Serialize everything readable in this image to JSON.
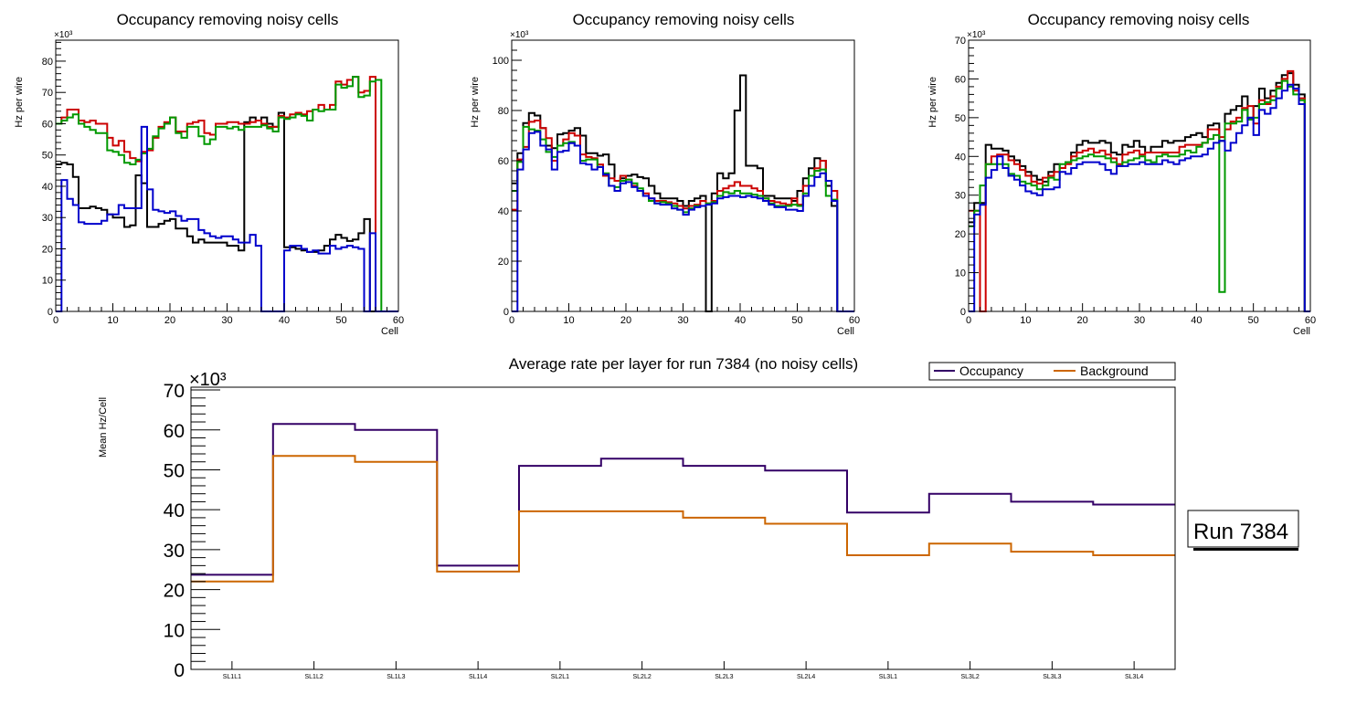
{
  "chart_data": [
    {
      "type": "line",
      "style": "histogram-step",
      "title": "Occupancy removing noisy cells",
      "xlabel": "Cell",
      "ylabel": "Hz per wire",
      "y_multiplier": "×10³",
      "xlim": [
        0,
        60
      ],
      "ylim": [
        0,
        86.7
      ],
      "xticks": [
        0,
        10,
        20,
        30,
        40,
        50,
        60
      ],
      "yticks": [
        0,
        10,
        20,
        30,
        40,
        50,
        60,
        70,
        80
      ],
      "grid": false,
      "series": [
        {
          "name": "layer-black",
          "color": "#000000",
          "values": [
            47,
            47.5,
            47,
            43,
            33,
            33,
            33.5,
            33,
            32.5,
            31,
            30,
            30,
            27,
            27.5,
            43.5,
            41,
            27,
            27,
            28,
            29,
            29.5,
            26.5,
            26.5,
            24,
            22,
            23,
            22,
            22,
            22,
            22,
            21,
            21,
            19.5,
            60.5,
            62,
            61,
            62,
            60,
            59,
            63.5,
            20.5,
            20.5,
            20,
            19.5,
            19,
            19,
            19.5,
            21,
            23,
            24.5,
            23.5,
            22.5,
            23,
            25,
            29.5,
            0,
            0,
            0,
            0,
            0
          ]
        },
        {
          "name": "layer-red",
          "color": "#cc0000",
          "values": [
            60,
            62,
            64.5,
            64.5,
            61,
            60.5,
            61,
            60,
            60,
            55.5,
            53,
            54.5,
            51,
            49,
            48,
            51,
            51.5,
            55.5,
            59,
            60.5,
            62,
            57.5,
            57.5,
            60,
            60.5,
            61,
            57,
            56.5,
            60,
            60,
            60.5,
            60.5,
            60,
            60,
            60.5,
            61,
            60,
            59,
            59,
            62.5,
            62,
            63,
            63.5,
            63,
            64,
            64.5,
            66,
            64.5,
            66,
            73.5,
            72.5,
            74,
            75,
            70,
            70.5,
            75,
            0,
            0,
            0,
            0
          ]
        },
        {
          "name": "layer-green",
          "color": "#009900",
          "values": [
            60,
            61,
            62,
            63,
            60,
            59,
            58,
            57,
            57,
            51.5,
            51,
            50,
            47.5,
            47,
            48.5,
            50.5,
            52,
            56,
            58.5,
            60,
            62,
            57,
            55.5,
            59,
            59,
            56,
            53.5,
            55,
            59,
            59,
            58.5,
            59,
            58,
            59,
            59,
            59,
            59.5,
            58.5,
            57.5,
            62,
            61.5,
            62,
            63,
            62.5,
            61,
            64.5,
            64,
            64.5,
            64.5,
            72.5,
            71.5,
            72,
            75,
            68.5,
            69,
            73.5,
            74,
            0,
            0,
            0
          ]
        },
        {
          "name": "layer-blue",
          "color": "#0000cc",
          "values": [
            0,
            42,
            36,
            34,
            28.5,
            28,
            28,
            28,
            29,
            31,
            31,
            34,
            33,
            33,
            33,
            59,
            39,
            32.5,
            32,
            31.5,
            32,
            30.5,
            29,
            29.5,
            29.5,
            26,
            25,
            24,
            23.5,
            24,
            24,
            23,
            22,
            22,
            24.5,
            21,
            0,
            0,
            0,
            0,
            19.5,
            21,
            21,
            20,
            19,
            19.5,
            18.5,
            18.5,
            21,
            20,
            20.5,
            21,
            20.5,
            20,
            0,
            25,
            0,
            0,
            0,
            0
          ]
        }
      ]
    },
    {
      "type": "line",
      "style": "histogram-step",
      "title": "Occupancy removing noisy cells",
      "xlabel": "Cell",
      "ylabel": "Hz per wire",
      "y_multiplier": "×10³",
      "xlim": [
        0,
        60
      ],
      "ylim": [
        0,
        108
      ],
      "xticks": [
        0,
        10,
        20,
        30,
        40,
        50,
        60
      ],
      "yticks": [
        0,
        20,
        40,
        60,
        80,
        100
      ],
      "grid": false,
      "series": [
        {
          "name": "layer-black",
          "color": "#000000",
          "values": [
            51,
            63,
            75,
            79,
            78,
            73,
            66,
            65,
            70.5,
            71,
            72,
            73,
            70,
            63,
            63,
            62,
            62.5,
            58.5,
            52,
            53,
            54,
            54.5,
            53.5,
            53,
            50,
            47,
            45,
            45,
            45,
            44,
            42,
            44,
            45,
            46,
            0,
            47,
            55,
            53,
            55,
            80,
            94,
            58,
            58,
            57,
            46,
            46,
            45,
            45,
            45,
            44,
            48,
            53,
            57,
            61,
            60,
            50,
            42,
            0,
            0,
            0
          ]
        },
        {
          "name": "layer-red",
          "color": "#cc0000",
          "values": [
            40.5,
            60.5,
            65.5,
            75.5,
            76,
            73,
            69,
            60,
            66,
            68.5,
            71,
            70,
            62.5,
            61.5,
            61,
            58.5,
            54,
            53,
            52,
            54,
            52.5,
            50,
            48,
            47,
            45,
            44,
            44,
            43.5,
            43,
            42,
            41,
            42,
            42.5,
            44,
            43,
            44,
            48,
            49,
            50,
            51.5,
            50,
            50,
            49,
            48,
            45,
            44,
            43.5,
            43,
            42.5,
            45,
            42.5,
            50,
            54,
            57,
            60,
            52,
            48,
            0,
            0,
            0
          ]
        },
        {
          "name": "layer-green",
          "color": "#009900",
          "values": [
            48,
            59.5,
            73.5,
            72.5,
            72,
            68.5,
            63.5,
            61.5,
            66,
            67,
            67.5,
            66,
            60,
            60.5,
            60.5,
            57.5,
            55,
            50,
            49.5,
            52,
            52.5,
            51,
            49,
            46,
            44,
            43,
            43.5,
            43,
            42,
            40.5,
            39.5,
            41,
            42,
            42,
            43,
            43.5,
            46,
            47.5,
            47,
            48,
            47,
            47,
            46.5,
            46,
            45,
            43,
            42,
            42,
            42,
            42.5,
            42,
            47,
            54,
            56,
            56.5,
            46,
            44.5,
            0,
            0,
            0
          ]
        },
        {
          "name": "layer-blue",
          "color": "#0000cc",
          "values": [
            0,
            56.5,
            64.5,
            71,
            71.5,
            66,
            64.5,
            56.5,
            63.5,
            64,
            67,
            66,
            59,
            58.5,
            56.5,
            57.5,
            54.5,
            50,
            48,
            51,
            51.5,
            49.5,
            48,
            46,
            45,
            43,
            42.5,
            42.5,
            41,
            40.5,
            38.5,
            40.5,
            41.5,
            42,
            42.5,
            43,
            45,
            45.5,
            46,
            46,
            45.5,
            46,
            45.5,
            45,
            44,
            42.5,
            41.5,
            41.5,
            40.5,
            40.5,
            40,
            46,
            50,
            53.5,
            55,
            52,
            44,
            0,
            0,
            0
          ]
        }
      ]
    },
    {
      "type": "line",
      "style": "histogram-step",
      "title": "Occupancy removing noisy cells",
      "xlabel": "Cell",
      "ylabel": "Hz per wire",
      "y_multiplier": "×10³",
      "xlim": [
        0,
        60
      ],
      "ylim": [
        0,
        70
      ],
      "xticks": [
        0,
        10,
        20,
        30,
        40,
        50,
        60
      ],
      "yticks": [
        0,
        10,
        20,
        30,
        40,
        50,
        60,
        70
      ],
      "grid": false,
      "series": [
        {
          "name": "layer-black",
          "color": "#000000",
          "values": [
            23,
            28,
            28,
            43,
            42,
            42,
            41.5,
            40,
            39,
            37.5,
            36,
            35,
            34,
            33.5,
            36,
            38,
            37,
            38.5,
            41,
            43,
            44,
            43.5,
            43.5,
            44,
            43.5,
            41,
            40.5,
            43,
            42.5,
            44,
            42.5,
            41,
            42.5,
            42.5,
            44,
            43.5,
            44,
            44,
            45,
            45.5,
            46,
            45,
            48,
            48.5,
            44,
            51,
            52,
            53,
            55.5,
            50,
            53,
            57.5,
            55,
            57,
            59,
            61,
            61.5,
            58.5,
            56,
            0
          ]
        },
        {
          "name": "layer-red",
          "color": "#cc0000",
          "values": [
            26,
            26,
            0,
            38,
            40,
            40.5,
            40.5,
            39,
            38,
            36.5,
            35,
            33.5,
            33,
            34.5,
            35,
            36,
            37,
            38,
            40,
            41,
            41.5,
            42,
            41,
            41.5,
            40.5,
            39.5,
            38,
            40.5,
            41,
            41.5,
            40.5,
            41,
            41,
            41,
            41,
            41,
            41,
            42.5,
            43,
            43,
            43,
            43.5,
            47,
            47,
            45,
            47,
            49,
            50,
            52.5,
            53,
            48.5,
            54.5,
            53.5,
            55.5,
            58,
            60,
            62,
            57,
            55,
            0
          ]
        },
        {
          "name": "layer-green",
          "color": "#009900",
          "values": [
            22,
            26,
            32.5,
            38,
            38,
            38,
            38,
            35.5,
            35,
            33.5,
            33,
            32.5,
            31.5,
            32.5,
            34.5,
            34,
            38,
            38.5,
            39,
            39.5,
            40,
            40.5,
            40,
            40,
            39.5,
            38.5,
            37.5,
            38.5,
            39,
            39.5,
            40,
            39,
            38.5,
            40,
            40.5,
            40,
            40,
            40.5,
            41.5,
            41,
            42.5,
            43.5,
            44.5,
            45.5,
            5,
            48.5,
            48.5,
            49,
            52,
            49.5,
            50,
            53.5,
            54,
            54.5,
            57.5,
            59.5,
            58,
            56,
            54.5,
            0
          ]
        },
        {
          "name": "layer-blue",
          "color": "#0000cc",
          "values": [
            0,
            25,
            27.5,
            34.5,
            36.5,
            40,
            37,
            35,
            34,
            32.5,
            31,
            30.5,
            30,
            31.5,
            31.5,
            32,
            36,
            35.5,
            37,
            38,
            38.5,
            38.5,
            38.5,
            38,
            36.5,
            35.5,
            37.5,
            37.5,
            38,
            38,
            38.5,
            38,
            38,
            38,
            39,
            38.5,
            38,
            39,
            39.5,
            40,
            40,
            40.5,
            42,
            43.5,
            44,
            41.5,
            43.5,
            46,
            48,
            50,
            45.5,
            52,
            51,
            52.5,
            55,
            57,
            58.5,
            57.5,
            53.5,
            0
          ]
        }
      ]
    },
    {
      "type": "line",
      "style": "histogram-step",
      "title": "Average rate per layer for run 7384 (no noisy cells)",
      "xlabel": "",
      "ylabel": "Mean Hz/Cell",
      "y_multiplier": "×10³",
      "categories": [
        "SL1L1",
        "SL1L2",
        "SL1L3",
        "SL1L4",
        "SL2L1",
        "SL2L2",
        "SL2L3",
        "SL2L4",
        "SL3L1",
        "SL3L2",
        "SL3L3",
        "SL3L4"
      ],
      "ylim": [
        0,
        70.7
      ],
      "yticks": [
        0,
        10,
        20,
        30,
        40,
        50,
        60,
        70
      ],
      "grid": false,
      "legend": "top-right",
      "series": [
        {
          "name": "Occupancy",
          "color": "#330066",
          "values": [
            23.7,
            61.5,
            60,
            26,
            51,
            52.8,
            51,
            49.8,
            39.3,
            44,
            42,
            41.3
          ]
        },
        {
          "name": "Background",
          "color": "#cc6600",
          "values": [
            22,
            53.5,
            52,
            24.5,
            39.6,
            39.6,
            38,
            36.5,
            28.6,
            31.5,
            29.5,
            28.6
          ]
        }
      ]
    }
  ],
  "annotation": {
    "run_label": "Run 7384"
  }
}
